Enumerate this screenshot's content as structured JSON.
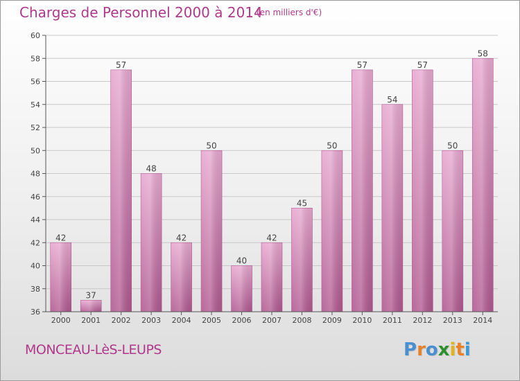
{
  "header": {
    "title": "Charges de Personnel 2000 à 2014",
    "subtitle": "(en milliers d'€)"
  },
  "footer": {
    "commune": "MONCEAU-LèS-LEUPS",
    "logo_letters": [
      {
        "char": "P",
        "color": "#4a8fd0"
      },
      {
        "char": "r",
        "color": "#e8822a"
      },
      {
        "char": "o",
        "color": "#4a8fd0"
      },
      {
        "char": "x",
        "color": "#2f8f2f"
      },
      {
        "char": "i",
        "color": "#e2b41c"
      },
      {
        "char": "t",
        "color": "#e8822a"
      },
      {
        "char": "i",
        "color": "#3a9ad8"
      }
    ]
  },
  "chart_data": {
    "type": "bar",
    "categories": [
      "2000",
      "2001",
      "2002",
      "2003",
      "2004",
      "2005",
      "2006",
      "2007",
      "2008",
      "2009",
      "2010",
      "2011",
      "2012",
      "2013",
      "2014"
    ],
    "values": [
      42,
      37,
      57,
      48,
      42,
      50,
      40,
      42,
      45,
      50,
      57,
      54,
      57,
      50,
      58
    ],
    "data_labels": [
      "42",
      "37",
      "57",
      "48",
      "42",
      "50",
      "40",
      "42",
      "45",
      "50",
      "57",
      "54",
      "57",
      "50",
      "58"
    ],
    "ylim": [
      36,
      60
    ],
    "yticks": [
      36,
      38,
      40,
      42,
      44,
      46,
      48,
      50,
      52,
      54,
      56,
      58,
      60
    ],
    "grid": true,
    "bar_color": "#d98fbf",
    "bar_edge_color": "#b0588f",
    "label_color": "#444444",
    "grid_color": "#c8c8c8"
  }
}
